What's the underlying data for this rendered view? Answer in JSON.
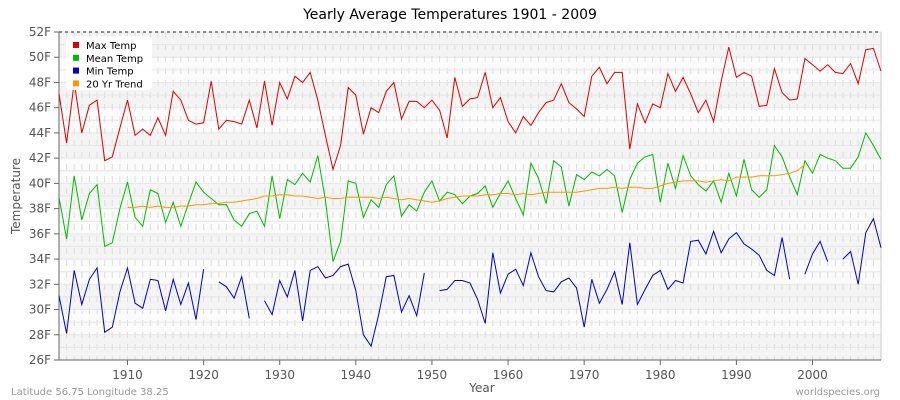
{
  "chart_data": {
    "type": "line",
    "title": "Yearly Average Temperatures 1901 - 2009",
    "xlabel": "Year",
    "ylabel": "Temperature",
    "ylim": [
      26,
      52
    ],
    "xlim": [
      1901,
      2009
    ],
    "y_ticks": [
      "26F",
      "28F",
      "30F",
      "32F",
      "34F",
      "36F",
      "38F",
      "40F",
      "42F",
      "44F",
      "46F",
      "48F",
      "50F",
      "52F"
    ],
    "x_ticks": [
      "1910",
      "1920",
      "1930",
      "1940",
      "1950",
      "1960",
      "1970",
      "1980",
      "1990",
      "2000"
    ],
    "grid": true,
    "legend_position": "top-left",
    "x_start": 1901,
    "series": [
      {
        "name": "Max Temp",
        "color": "#dd0000",
        "values": [
          47.1,
          43.2,
          48.0,
          44.0,
          46.2,
          46.6,
          41.8,
          42.1,
          44.4,
          46.6,
          43.8,
          44.3,
          43.8,
          45.2,
          43.8,
          47.3,
          46.6,
          45.0,
          44.7,
          44.8,
          48.1,
          44.3,
          45.0,
          44.9,
          44.7,
          46.6,
          44.4,
          48.1,
          44.6,
          48.0,
          46.7,
          48.5,
          48.0,
          48.8,
          46.6,
          43.8,
          41.1,
          43.0,
          47.6,
          47.0,
          43.9,
          46.0,
          45.6,
          47.3,
          48.0,
          45.1,
          46.5,
          46.5,
          46.0,
          46.6,
          45.8,
          43.6,
          48.4,
          46.1,
          46.7,
          46.8,
          48.8,
          46.0,
          46.8,
          44.9,
          44.0,
          45.3,
          44.6,
          45.6,
          46.4,
          46.6,
          47.9,
          46.4,
          45.9,
          45.3,
          48.5,
          49.2,
          47.9,
          48.8,
          48.8,
          42.7,
          46.3,
          44.8,
          46.3,
          46.0,
          48.7,
          47.3,
          48.4,
          47.1,
          45.6,
          46.6,
          44.9,
          48.1,
          50.8,
          48.4,
          48.8,
          48.5,
          46.1,
          46.2,
          49.1,
          47.2,
          46.6,
          46.7,
          49.9,
          49.4,
          48.9,
          49.4,
          48.8,
          48.7,
          49.5,
          47.9,
          50.6,
          50.7,
          48.9
        ]
      },
      {
        "name": "Mean Temp",
        "color": "#00bb00",
        "values": [
          38.9,
          35.6,
          40.6,
          37.1,
          39.2,
          39.9,
          35.0,
          35.3,
          38.0,
          40.1,
          37.3,
          36.6,
          39.5,
          39.2,
          36.9,
          38.5,
          36.6,
          38.4,
          40.1,
          39.3,
          38.8,
          38.3,
          38.3,
          37.1,
          36.6,
          37.6,
          37.8,
          36.6,
          40.6,
          37.2,
          40.3,
          39.9,
          40.8,
          40.1,
          42.2,
          38.7,
          33.8,
          35.4,
          40.2,
          40.0,
          37.3,
          38.7,
          38.1,
          39.9,
          40.6,
          37.4,
          38.3,
          37.8,
          39.3,
          40.2,
          38.6,
          39.3,
          39.1,
          38.4,
          39.0,
          39.2,
          39.8,
          38.1,
          39.2,
          40.2,
          38.8,
          37.5,
          41.6,
          40.4,
          38.4,
          41.8,
          41.3,
          38.2,
          40.7,
          40.3,
          40.9,
          40.6,
          41.1,
          40.6,
          37.7,
          40.3,
          41.6,
          42.1,
          42.3,
          38.5,
          41.6,
          39.6,
          42.2,
          40.6,
          39.9,
          39.4,
          40.2,
          38.5,
          40.8,
          39.0,
          41.9,
          39.5,
          38.9,
          39.5,
          43.0,
          42.1,
          40.5,
          39.1,
          41.8,
          40.8,
          42.3,
          42.0,
          41.8,
          41.2,
          41.2,
          42.1,
          44.0,
          43.0,
          41.9
        ]
      },
      {
        "name": "Min Temp",
        "color": "#0000cc",
        "values": [
          31.1,
          28.1,
          33.1,
          30.4,
          32.4,
          33.3,
          28.2,
          28.6,
          31.4,
          33.3,
          30.5,
          30.1,
          32.4,
          32.3,
          29.9,
          32.4,
          30.4,
          32.1,
          29.2,
          33.2,
          null,
          32.2,
          31.8,
          30.9,
          32.6,
          29.3,
          null,
          30.7,
          29.6,
          32.3,
          31.0,
          33.1,
          29.1,
          33.1,
          33.4,
          32.5,
          32.7,
          33.4,
          33.6,
          31.5,
          28.0,
          27.1,
          29.6,
          32.6,
          32.7,
          29.8,
          31.1,
          29.5,
          32.9,
          null,
          31.5,
          31.6,
          32.3,
          32.3,
          32.1,
          30.8,
          28.9,
          34.5,
          31.3,
          32.8,
          33.2,
          31.9,
          34.5,
          32.6,
          31.5,
          31.4,
          32.2,
          32.5,
          31.7,
          28.6,
          32.4,
          30.5,
          31.6,
          33.0,
          30.4,
          35.3,
          30.4,
          31.6,
          32.7,
          33.1,
          31.6,
          32.3,
          32.1,
          35.4,
          35.5,
          34.4,
          36.2,
          34.5,
          35.6,
          36.1,
          35.2,
          34.8,
          34.3,
          33.1,
          32.7,
          35.7,
          32.4,
          null,
          32.8,
          34.4,
          35.4,
          33.8,
          null,
          34.0,
          34.6,
          32.0,
          36.1,
          37.2,
          34.9
        ]
      },
      {
        "name": "20 Yr Trend",
        "color": "#ff9900",
        "values": [
          null,
          null,
          null,
          null,
          null,
          null,
          null,
          null,
          null,
          38.1,
          38.1,
          38.2,
          38.1,
          38.2,
          38.1,
          38.1,
          38.2,
          38.2,
          38.3,
          38.3,
          38.4,
          38.4,
          38.5,
          38.5,
          38.6,
          38.7,
          38.8,
          39.0,
          39.0,
          39.1,
          39.1,
          39.0,
          39.0,
          38.9,
          38.8,
          38.9,
          38.8,
          38.8,
          38.9,
          38.9,
          38.9,
          38.9,
          38.8,
          38.9,
          38.8,
          38.7,
          38.8,
          38.7,
          38.6,
          38.5,
          38.6,
          38.8,
          38.9,
          39.0,
          39.0,
          39.0,
          39.1,
          39.1,
          39.2,
          39.2,
          39.1,
          39.2,
          39.1,
          39.2,
          39.3,
          39.3,
          39.3,
          39.3,
          39.3,
          39.4,
          39.5,
          39.6,
          39.6,
          39.7,
          39.6,
          39.7,
          39.7,
          39.6,
          39.6,
          39.8,
          40.0,
          40.1,
          40.2,
          40.2,
          40.2,
          40.1,
          40.2,
          40.3,
          40.2,
          40.5,
          40.5,
          40.5,
          40.6,
          40.6,
          40.6,
          40.7,
          40.8,
          41.0,
          41.5,
          null,
          null,
          null,
          null,
          null,
          null,
          null,
          null,
          null,
          null
        ]
      }
    ]
  },
  "footer": {
    "left": "Latitude 56.75 Longitude 38.25",
    "right": "worldspecies.org"
  }
}
